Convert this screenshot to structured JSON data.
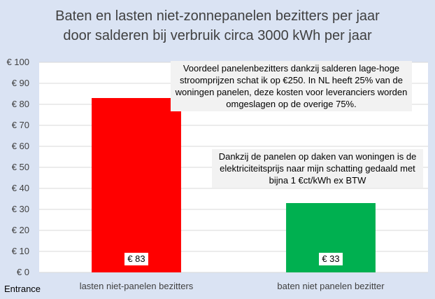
{
  "chart_data": {
    "type": "bar",
    "title_lines": [
      "Baten en lasten niet-zonnepanelen bezitters per jaar",
      "door salderen bij verbruik circa 3000 kWh per jaar"
    ],
    "categories": [
      "lasten niet-panelen bezitters",
      "baten niet panelen bezitter"
    ],
    "values": [
      83,
      33
    ],
    "data_labels": [
      "€ 83",
      "€ 33"
    ],
    "colors": [
      "#ff0000",
      "#00b050"
    ],
    "ylim": [
      0,
      100
    ],
    "y_ticks": [
      0,
      10,
      20,
      30,
      40,
      50,
      60,
      70,
      80,
      90,
      100
    ],
    "y_tick_labels": [
      "€ 0",
      "€ 10",
      "€ 20",
      "€ 30",
      "€ 40",
      "€ 50",
      "€ 60",
      "€ 70",
      "€ 80",
      "€ 90",
      "€ 100"
    ],
    "grid": true,
    "annotations": [
      "Voordeel panelenbezitters dankzij salderen lage-hoge stroomprijzen schat ik op €250. In NL heeft 25% van de woningen panelen, deze kosten voor leveranciers worden omgeslagen op de overige 75%.",
      "Dankzij de panelen op daken van woningen is de elektriciteitsprijs naar mijn schatting gedaald met bijna 1 €ct/kWh ex BTW"
    ],
    "xlabel": "",
    "ylabel": ""
  },
  "footer": {
    "source": "Entrance"
  }
}
